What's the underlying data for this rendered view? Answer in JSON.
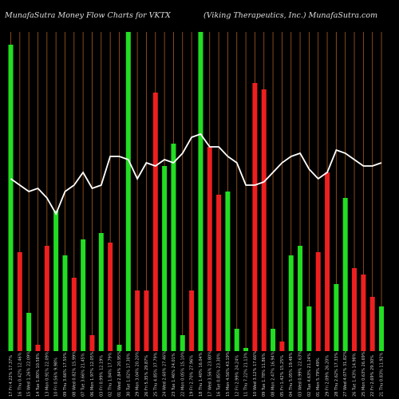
{
  "header": {
    "left": "MunafaSutra  Money Flow  Charts for VKTX",
    "right": "(Viking Therapeutics, Inc.) MunafaSutra.com"
  },
  "chart_data": {
    "type": "bar",
    "title": "MunafaSutra  Money Flow  Charts for VKTX",
    "subtitle": "(Viking Therapeutics, Inc.) MunafaSutra.com",
    "ylim": [
      0,
      100
    ],
    "grid": true,
    "colors": {
      "up": "#22dd22",
      "down": "#ee1f1f",
      "line": "#ffffff",
      "grid": "#a8591e"
    },
    "categories": [
      "17 Fri 4.22% 17.37%",
      "16 Thu 0.42% 12.46%",
      "15 Wed 1.26% 22.09%",
      "14 Tue 1.80% 10.58%",
      "13 Mon 0.91% 22.09%",
      "10 Fri 0.56% 9.98%",
      "09 Thu 3.66% 17.50%",
      "08 Wed 0.82% 15.99%",
      "07 Tue 3.66% 21.45%",
      "06 Mon 1.97% 12.05%",
      "03 Fri 0.99% 12.19%",
      "02 Thu 1.84% 17.79%",
      "01 Wed 2.84% 20.95%",
      "30 Tue 1.02% 17.30%",
      "29 Mon 3.04% 20.20%",
      "26 Fri 5.35% 29.87%",
      "25 Thu 4.85% 37.79%",
      "24 Wed 2.60% 27.46%",
      "23 Tue 1.46% 24.01%",
      "22 Mon 0.05% 15.10%",
      "19 Fri 2.70% 27.96%",
      "18 Thu 1.40% 16.04%",
      "17 Wed 3.56% 23.80%",
      "16 Tue 0.85% 23.30%",
      "15 Mon 4.56% 43.19%",
      "12 Fri 2.99% 24.24%",
      "11 Thu 7.22% 21.13%",
      "10 Wed 3.12% 17.66%",
      "09 Tue 1.78% 11.86%",
      "08 Mon 2.47% 16.94%",
      "05 Fri 1.42% 15.25%",
      "04 Thu 5.05% 19.48%",
      "03 Wed 0.99% 22.63%",
      "02 Tue 4.63% 21.24%",
      "01 Mon 5.79% 49%",
      "29 Fri 2.09% 26.20%",
      "28 Thu 2.62% 17.33%",
      "27 Wed 4.07% 31.82%",
      "26 Tue 1.43% 14.98%",
      "25 Mon 0.63% 26.69%",
      "22 Fri 2.69% 29.30%",
      "21 Thu 0.83% 11.92%"
    ],
    "series": [
      {
        "values": [
          96,
          31,
          12,
          2,
          33,
          44,
          30,
          23,
          35,
          5,
          37,
          34,
          2,
          100,
          19,
          19,
          81,
          58,
          65,
          5,
          19,
          100,
          64,
          49,
          50,
          7,
          1,
          84,
          82,
          7,
          3,
          30,
          33,
          14,
          31,
          56,
          21,
          48,
          26,
          24,
          17,
          14
        ],
        "direction": [
          "up",
          "down",
          "up",
          "down",
          "down",
          "up",
          "up",
          "down",
          "up",
          "down",
          "up",
          "down",
          "up",
          "up",
          "down",
          "down",
          "down",
          "up",
          "up",
          "up",
          "down",
          "up",
          "down",
          "down",
          "up",
          "up",
          "up",
          "down",
          "down",
          "up",
          "down",
          "up",
          "up",
          "up",
          "down",
          "down",
          "up",
          "up",
          "down",
          "down",
          "down",
          "up"
        ]
      },
      {
        "values": [
          54,
          52,
          50,
          51,
          48,
          43,
          50,
          52,
          56,
          51,
          52,
          61,
          61,
          60,
          54,
          59,
          58,
          60,
          59,
          62,
          67,
          68,
          64,
          64,
          61,
          59,
          52,
          52,
          53,
          56,
          59,
          61,
          62,
          57,
          54,
          56,
          63,
          62,
          60,
          58,
          58,
          59
        ]
      }
    ]
  }
}
